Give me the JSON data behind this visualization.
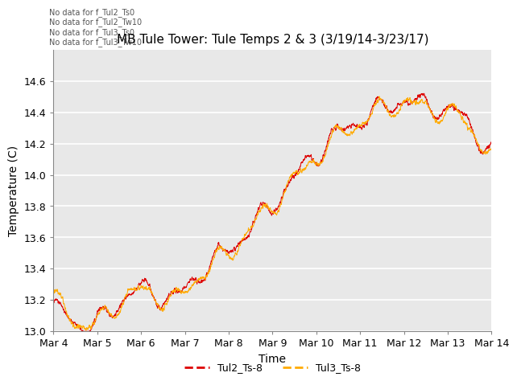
{
  "title": "MB Tule Tower: Tule Temps 2 & 3 (3/19/14-3/23/17)",
  "xlabel": "Time",
  "ylabel": "Temperature (C)",
  "xlim_days": [
    0,
    10
  ],
  "ylim": [
    13.0,
    14.8
  ],
  "yticks": [
    13.0,
    13.2,
    13.4,
    13.6,
    13.8,
    14.0,
    14.2,
    14.4,
    14.6
  ],
  "xtick_labels": [
    "Mar 4",
    "Mar 5",
    "Mar 6",
    "Mar 7",
    "Mar 8",
    "Mar 9",
    "Mar 10",
    "Mar 11",
    "Mar 12",
    "Mar 13",
    "Mar 14"
  ],
  "xtick_positions": [
    0,
    1,
    2,
    3,
    4,
    5,
    6,
    7,
    8,
    9,
    10
  ],
  "color_tul2": "#dd0000",
  "color_tul3": "#ffaa00",
  "legend_labels": [
    "Tul2_Ts-8",
    "Tul3_Ts-8"
  ],
  "no_data_lines": [
    "No data for f_Tul2_Ts0",
    "No data for f_Tul2_Tw10",
    "No data for f_Tul3_Ts0",
    "No data for f_Tul3_Tw10"
  ],
  "background_color": "#ffffff",
  "plot_bg_color": "#e8e8e8",
  "grid_color": "#ffffff",
  "title_fontsize": 11,
  "axis_fontsize": 10,
  "tick_fontsize": 9
}
